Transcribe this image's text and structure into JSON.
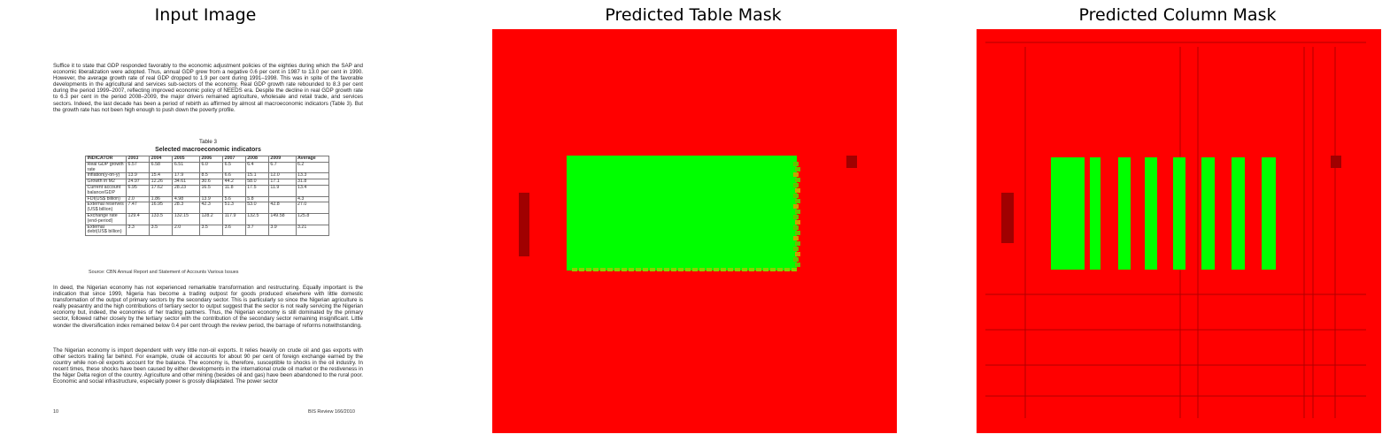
{
  "panels": {
    "input_title": "Input Image",
    "table_mask_title": "Predicted Table Mask",
    "column_mask_title": "Predicted Column Mask"
  },
  "document": {
    "para1": "Suffice it to state that GDP responded favorably to the economic adjustment policies of the eighties during which the SAP and economic liberalization were adopted. Thus, annual GDP grew from a negative 0.6 per cent in 1987 to 13.0 per cent in 1990. However, the average growth rate of real GDP dropped to 1.9 per cent during 1991–1998. This was in spite of the favorable developments in the agricultural and services sub-sectors of the economy. Real GDP growth rate rebounded to 8.3 per cent during the period 1999–2007, reflecting improved economic policy of NEEDS era. Despite the decline in real GDP growth rate to 6.3 per cent in the period 2008–2009, the major drivers remained agriculture, wholesale and retail trade, and services sectors. Indeed, the last decade has been a period of rebirth as affirmed by almost all macroeconomic indicators (Table 3). But the growth rate has not been high enough to push down the poverty profile.",
    "table_label": "Table 3",
    "table_title": "Selected macroeconomic indicators",
    "table_headers": [
      "INDICATOR",
      "2003",
      "2004",
      "2005",
      "2006",
      "2007",
      "2008",
      "2009",
      "Average"
    ],
    "table_rows": [
      [
        "Real GDP growth rate",
        "6.57",
        "6.58",
        "6.51",
        "6.0",
        "6.5",
        "6.4",
        "6.7",
        "6.2"
      ],
      [
        "Inflation(y-on-y)",
        "13.9",
        "15.4",
        "17.9",
        "8.5",
        "6.6",
        "15.1",
        "12.0",
        "13.3"
      ],
      [
        "Growth in M2",
        "24.97",
        "12.26",
        "34.61",
        "30.6",
        "44.2",
        "58.0",
        "17.1",
        "31.8"
      ],
      [
        "Current account balance/GDP",
        "6.95",
        "17.62",
        "28.23",
        "16.5",
        "11.8",
        "17.5",
        "11.9",
        "13.4"
      ],
      [
        "FDI(US$ billion)",
        "2.0",
        "1.86",
        "4.98",
        "13.9",
        "5.6",
        "5.8",
        "",
        "4.3"
      ],
      [
        "External reserves (US$ billion)",
        "7.47",
        "16.95",
        "28.3",
        "42.3",
        "51.3",
        "53.0",
        "42.8",
        "27.0"
      ],
      [
        "Exchange rate (end-period)",
        "129.4",
        "133.5",
        "132.15",
        "128.2",
        "117.9",
        "132.5",
        "149.58",
        "125.8"
      ],
      [
        "External debt(US$ billion)",
        "3.3",
        "3.5",
        "2.0",
        "3.5",
        "3.6",
        "3.7",
        "3.9",
        "3.21"
      ]
    ],
    "source": "Source: CBN Annual Report and Statement of Accounts Various Issues",
    "para2": "In deed, the Nigerian economy has not experienced remarkable transformation and restructuring. Equally important is the indication that since 1999, Nigeria has become a trading outpost for goods produced elsewhere with little domestic transformation of the output of primary sectors by the secondary sector. This is particularly so since the Nigerian agriculture is really peasantry and the high contributions of tertiary sector to output suggest that the sector is not really servicing the Nigerian economy but, indeed, the economies of her trading partners. Thus, the Nigerian economy is still dominated by the primary sector, followed rather closely by the tertiary sector with the contribution of the secondary sector remaining insignificant. Little wonder the diversification index remained below 0.4 per cent through the review period, the barrage of reforms notwithstanding.",
    "para3": "The Nigerian economy is import dependent with very little non-oil exports. It relies heavily on crude oil and gas exports with other sectors trailing far behind. For example, crude oil accounts for about 90 per cent of foreign exchange earned by the country while non-oil exports account for the balance. The economy is, therefore, susceptible to shocks in the oil industry. In recent times, these shocks have been caused by either developments in the international crude oil market or the restiveness in the Niger Delta region of the country. Agriculture and other mining (besides oil and gas) have been abandoned to the rural poor. Economic and social infrastructure, especially power is grossly dilapidated. The power sector",
    "page_number": "10",
    "footer_right": "BIS Review 166/2010"
  },
  "colors": {
    "background_mask": "#ff0000",
    "predicted_mask": "#00ff00",
    "edge_mask": "#a00000"
  }
}
